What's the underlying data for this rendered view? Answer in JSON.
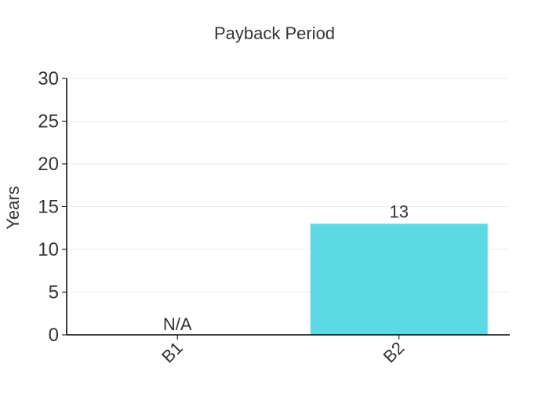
{
  "chart_data": {
    "type": "bar",
    "title": "Payback Period",
    "xlabel": "",
    "ylabel": "Years",
    "categories": [
      "B1",
      "B2"
    ],
    "values": [
      null,
      13
    ],
    "data_labels": [
      "N/A",
      "13"
    ],
    "ylim": [
      0,
      30
    ],
    "yticks": [
      0,
      5,
      10,
      15,
      20,
      25,
      30
    ],
    "ytick_labels": [
      "0",
      "5",
      "10",
      "15",
      "20",
      "25",
      "30"
    ],
    "grid": true,
    "legend": "none",
    "bar_color": "#5dd9e6",
    "axis_color": "#000000",
    "grid_color": "#ebebeb",
    "text_color": "#333333"
  }
}
